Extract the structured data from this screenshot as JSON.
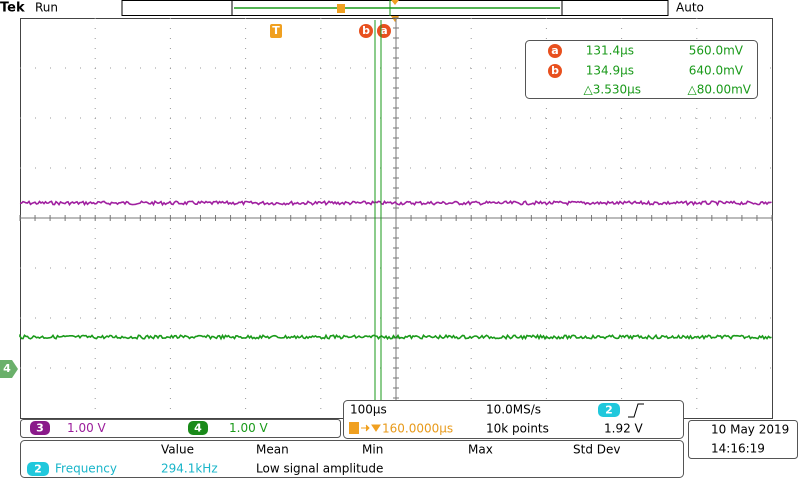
{
  "header": {
    "brand": "Tek",
    "state": "Run",
    "trigger_mode": "Auto"
  },
  "markers": {
    "trigger": "T",
    "cursor_b": "b",
    "cursor_a": "a",
    "channel4": "4"
  },
  "cursor_readout": {
    "a": {
      "label": "a",
      "time": "131.4µs",
      "voltage": "560.0mV"
    },
    "b": {
      "label": "b",
      "time": "134.9µs",
      "voltage": "640.0mV"
    },
    "delta": {
      "time": "△3.530µs",
      "voltage": "△80.00mV"
    }
  },
  "channels": [
    {
      "number": "3",
      "scale": "1.00 V"
    },
    {
      "number": "4",
      "scale": "1.00 V"
    }
  ],
  "timebase": {
    "scale": "100µs",
    "sample_rate": "10.0MS/s",
    "trigger_source": "2",
    "trigger_level": "1.92 V",
    "trigger_position": "160.0000µs",
    "record_length": "10k points"
  },
  "clock": {
    "date": "10 May 2019",
    "time": "14:16:19"
  },
  "measurements": {
    "headers": [
      "Value",
      "Mean",
      "Min",
      "Max",
      "Std Dev"
    ],
    "rows": [
      {
        "source": "2",
        "name": "Frequency",
        "value": "294.1kHz",
        "note": "Low signal amplitude"
      }
    ]
  }
}
